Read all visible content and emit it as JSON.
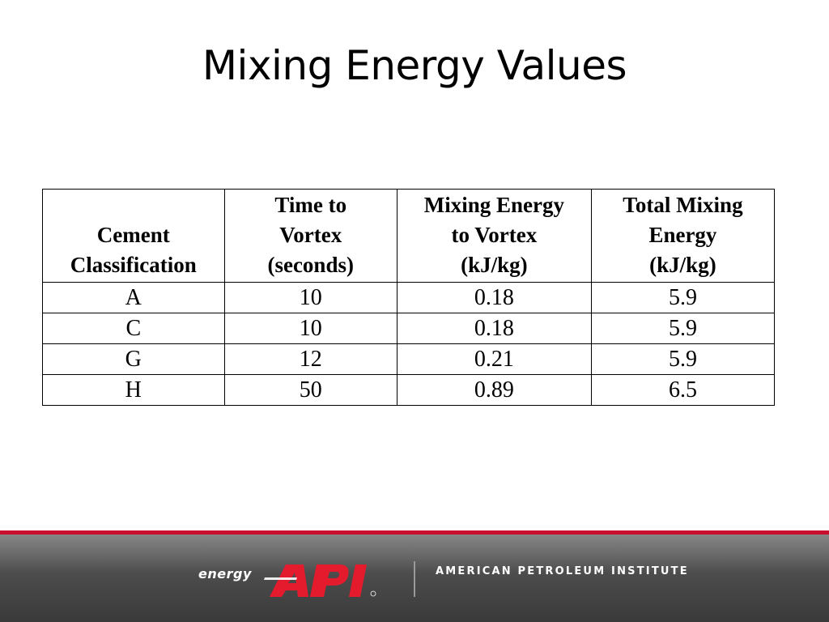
{
  "slide": {
    "title": "Mixing Energy Values"
  },
  "table": {
    "headers": [
      [
        "Cement",
        "Classification"
      ],
      [
        "Time to",
        "Vortex",
        "(seconds)"
      ],
      [
        "Mixing Energy",
        "to Vortex",
        "(kJ/kg)"
      ],
      [
        "Total Mixing",
        "Energy",
        "(kJ/kg)"
      ]
    ],
    "rows": [
      [
        "A",
        "10",
        "0.18",
        "5.9"
      ],
      [
        "C",
        "10",
        "0.18",
        "5.9"
      ],
      [
        "G",
        "12",
        "0.21",
        "5.9"
      ],
      [
        "H",
        "50",
        "0.89",
        "6.5"
      ]
    ]
  },
  "footer": {
    "logo_prefix": "energy",
    "logo_mark": "API",
    "organization": "AMERICAN PETROLEUM INSTITUTE",
    "accent_color": "#c8102e",
    "logo_color": "#e41b2d"
  }
}
